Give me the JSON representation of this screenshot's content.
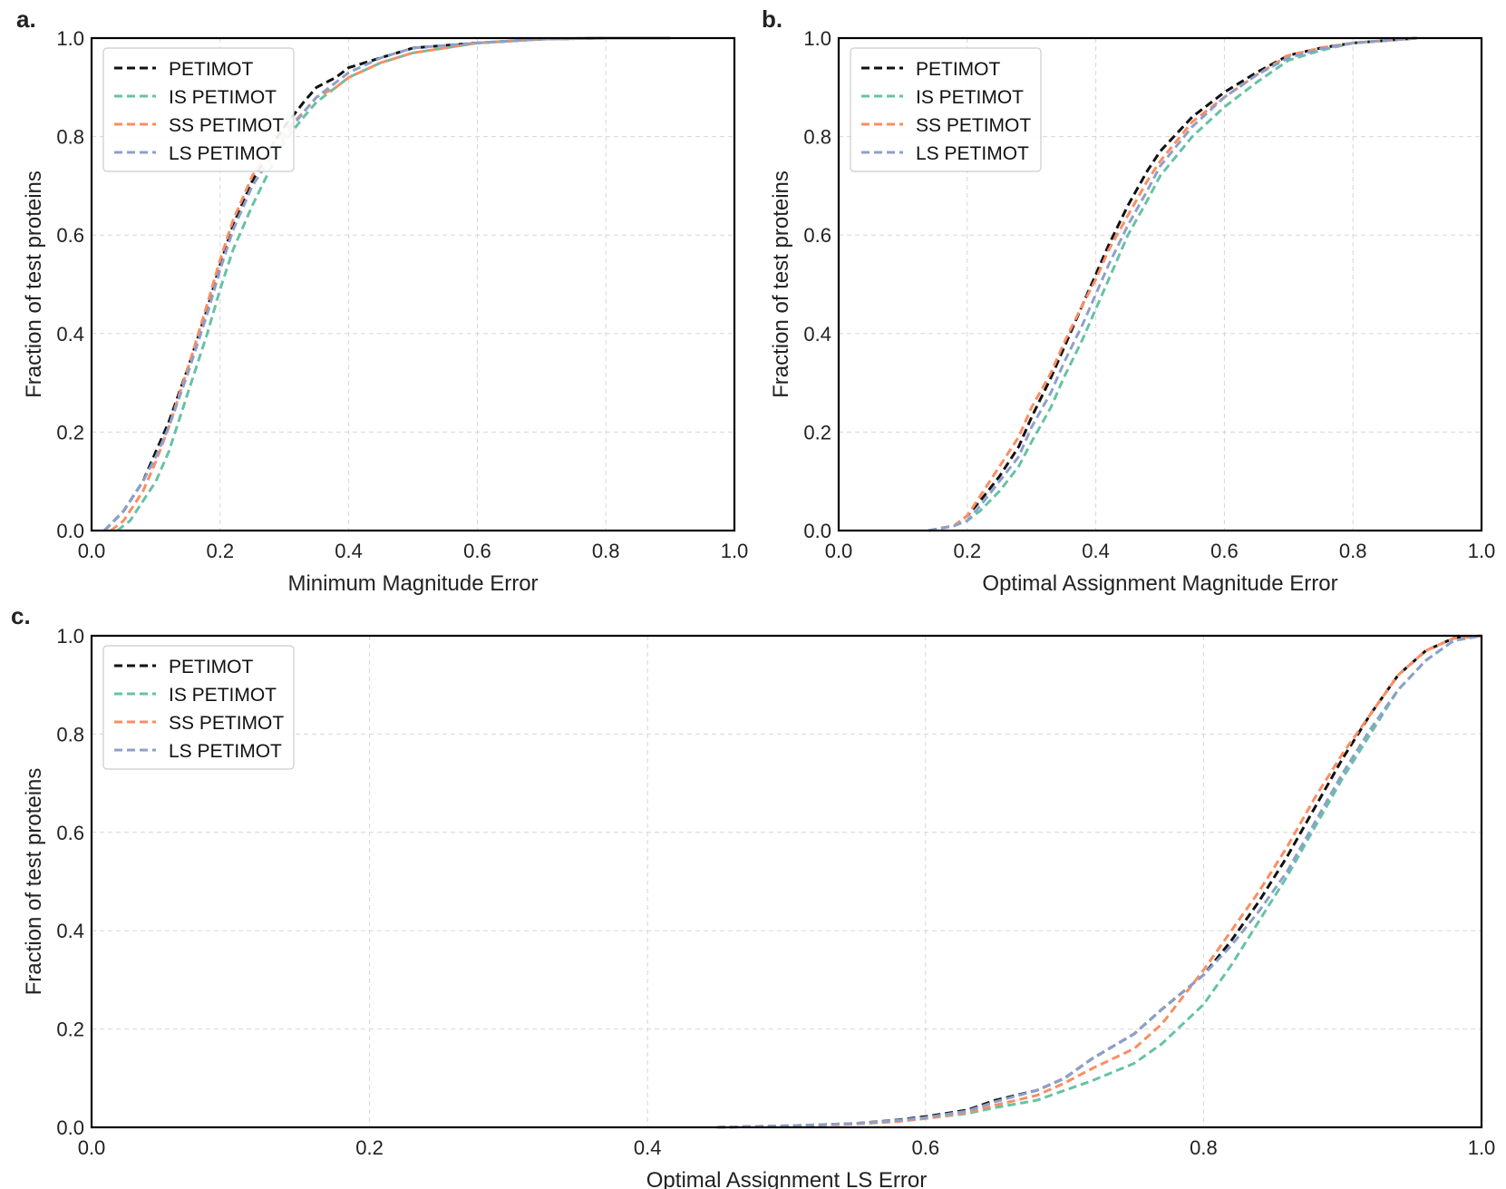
{
  "colors": {
    "PETIMOT": "#111111",
    "IS PETIMOT": "#66c2a5",
    "SS PETIMOT": "#fc8d62",
    "LS PETIMOT": "#8da0cb",
    "grid": "#d6d6d6",
    "axis": "#000000"
  },
  "chart_data": [
    {
      "panel_label": "a.",
      "type": "line",
      "xlabel": "Minimum Magnitude Error",
      "ylabel": "Fraction of test proteins",
      "xlim": [
        0.0,
        1.0
      ],
      "ylim": [
        0.0,
        1.0
      ],
      "xticks": [
        "0.0",
        "0.2",
        "0.4",
        "0.6",
        "0.8",
        "1.0"
      ],
      "yticks": [
        "0.0",
        "0.2",
        "0.4",
        "0.6",
        "0.8",
        "1.0"
      ],
      "grid": true,
      "legend_position": "top-left",
      "series": [
        {
          "name": "PETIMOT",
          "x": [
            0.02,
            0.05,
            0.08,
            0.1,
            0.12,
            0.15,
            0.18,
            0.2,
            0.22,
            0.25,
            0.28,
            0.3,
            0.33,
            0.35,
            0.38,
            0.4,
            0.45,
            0.5,
            0.55,
            0.6,
            0.7,
            0.8,
            0.9
          ],
          "y": [
            0.0,
            0.04,
            0.1,
            0.16,
            0.22,
            0.33,
            0.45,
            0.54,
            0.62,
            0.71,
            0.78,
            0.82,
            0.87,
            0.9,
            0.92,
            0.94,
            0.96,
            0.98,
            0.985,
            0.99,
            0.998,
            1.0,
            1.0
          ]
        },
        {
          "name": "IS PETIMOT",
          "x": [
            0.04,
            0.06,
            0.08,
            0.1,
            0.12,
            0.15,
            0.18,
            0.2,
            0.22,
            0.25,
            0.28,
            0.3,
            0.33,
            0.35,
            0.38,
            0.4,
            0.45,
            0.5,
            0.55,
            0.6,
            0.7,
            0.8,
            0.9
          ],
          "y": [
            0.0,
            0.02,
            0.06,
            0.1,
            0.16,
            0.28,
            0.4,
            0.49,
            0.57,
            0.66,
            0.74,
            0.79,
            0.84,
            0.87,
            0.9,
            0.92,
            0.95,
            0.97,
            0.98,
            0.99,
            0.998,
            1.0,
            1.0
          ]
        },
        {
          "name": "SS PETIMOT",
          "x": [
            0.03,
            0.05,
            0.08,
            0.1,
            0.12,
            0.15,
            0.18,
            0.2,
            0.22,
            0.25,
            0.28,
            0.3,
            0.33,
            0.35,
            0.38,
            0.4,
            0.45,
            0.5,
            0.55,
            0.6,
            0.7,
            0.8,
            0.9
          ],
          "y": [
            0.0,
            0.02,
            0.08,
            0.14,
            0.21,
            0.33,
            0.46,
            0.55,
            0.63,
            0.72,
            0.78,
            0.81,
            0.85,
            0.88,
            0.9,
            0.92,
            0.95,
            0.97,
            0.98,
            0.99,
            0.998,
            1.0,
            1.0
          ]
        },
        {
          "name": "LS PETIMOT",
          "x": [
            0.02,
            0.05,
            0.08,
            0.1,
            0.12,
            0.15,
            0.18,
            0.2,
            0.22,
            0.25,
            0.28,
            0.3,
            0.33,
            0.35,
            0.38,
            0.4,
            0.45,
            0.5,
            0.55,
            0.6,
            0.7,
            0.8,
            0.9
          ],
          "y": [
            0.0,
            0.04,
            0.1,
            0.15,
            0.21,
            0.32,
            0.44,
            0.53,
            0.61,
            0.7,
            0.76,
            0.8,
            0.85,
            0.88,
            0.91,
            0.93,
            0.96,
            0.98,
            0.985,
            0.99,
            0.998,
            1.0,
            1.0
          ]
        }
      ]
    },
    {
      "panel_label": "b.",
      "type": "line",
      "xlabel": "Optimal Assignment Magnitude Error",
      "ylabel": "Fraction of test proteins",
      "xlim": [
        0.0,
        1.0
      ],
      "ylim": [
        0.0,
        1.0
      ],
      "xticks": [
        "0.0",
        "0.2",
        "0.4",
        "0.6",
        "0.8",
        "1.0"
      ],
      "yticks": [
        "0.0",
        "0.2",
        "0.4",
        "0.6",
        "0.8",
        "1.0"
      ],
      "grid": true,
      "legend_position": "top-left",
      "series": [
        {
          "name": "PETIMOT",
          "x": [
            0.14,
            0.18,
            0.2,
            0.22,
            0.25,
            0.28,
            0.3,
            0.33,
            0.35,
            0.38,
            0.4,
            0.42,
            0.45,
            0.48,
            0.5,
            0.55,
            0.6,
            0.65,
            0.7,
            0.75,
            0.8,
            0.85,
            0.9
          ],
          "y": [
            0.0,
            0.01,
            0.03,
            0.06,
            0.11,
            0.17,
            0.23,
            0.31,
            0.37,
            0.46,
            0.52,
            0.58,
            0.66,
            0.73,
            0.77,
            0.84,
            0.89,
            0.93,
            0.965,
            0.98,
            0.99,
            0.995,
            1.0
          ]
        },
        {
          "name": "IS PETIMOT",
          "x": [
            0.14,
            0.18,
            0.2,
            0.22,
            0.25,
            0.28,
            0.3,
            0.33,
            0.35,
            0.38,
            0.4,
            0.42,
            0.45,
            0.48,
            0.5,
            0.55,
            0.6,
            0.65,
            0.7,
            0.75,
            0.8,
            0.85,
            0.9
          ],
          "y": [
            0.0,
            0.01,
            0.02,
            0.04,
            0.08,
            0.13,
            0.18,
            0.25,
            0.31,
            0.39,
            0.45,
            0.51,
            0.6,
            0.67,
            0.72,
            0.8,
            0.86,
            0.91,
            0.955,
            0.975,
            0.99,
            0.995,
            1.0
          ]
        },
        {
          "name": "SS PETIMOT",
          "x": [
            0.14,
            0.18,
            0.2,
            0.22,
            0.25,
            0.28,
            0.3,
            0.33,
            0.35,
            0.38,
            0.4,
            0.42,
            0.45,
            0.48,
            0.5,
            0.55,
            0.6,
            0.65,
            0.7,
            0.75,
            0.8,
            0.85,
            0.9
          ],
          "y": [
            0.0,
            0.01,
            0.03,
            0.07,
            0.13,
            0.19,
            0.25,
            0.32,
            0.38,
            0.46,
            0.51,
            0.57,
            0.64,
            0.71,
            0.75,
            0.83,
            0.88,
            0.925,
            0.965,
            0.98,
            0.99,
            0.995,
            1.0
          ]
        },
        {
          "name": "LS PETIMOT",
          "x": [
            0.14,
            0.18,
            0.2,
            0.22,
            0.25,
            0.28,
            0.3,
            0.33,
            0.35,
            0.38,
            0.4,
            0.42,
            0.45,
            0.48,
            0.5,
            0.55,
            0.6,
            0.65,
            0.7,
            0.75,
            0.8,
            0.85,
            0.9
          ],
          "y": [
            0.0,
            0.01,
            0.02,
            0.05,
            0.1,
            0.15,
            0.21,
            0.28,
            0.34,
            0.42,
            0.48,
            0.54,
            0.62,
            0.69,
            0.74,
            0.82,
            0.88,
            0.925,
            0.96,
            0.978,
            0.99,
            0.995,
            1.0
          ]
        }
      ]
    },
    {
      "panel_label": "c.",
      "type": "line",
      "xlabel": "Optimal Assignment LS Error",
      "ylabel": "Fraction of test proteins",
      "xlim": [
        0.0,
        1.0
      ],
      "ylim": [
        0.0,
        1.0
      ],
      "xticks": [
        "0.0",
        "0.2",
        "0.4",
        "0.6",
        "0.8",
        "1.0"
      ],
      "yticks": [
        "0.0",
        "0.2",
        "0.4",
        "0.6",
        "0.8",
        "1.0"
      ],
      "grid": true,
      "legend_position": "top-left",
      "series": [
        {
          "name": "PETIMOT",
          "x": [
            0.45,
            0.5,
            0.55,
            0.58,
            0.6,
            0.63,
            0.65,
            0.68,
            0.7,
            0.72,
            0.75,
            0.77,
            0.8,
            0.82,
            0.84,
            0.86,
            0.88,
            0.9,
            0.92,
            0.94,
            0.96,
            0.98,
            1.0
          ],
          "y": [
            0.0,
            0.003,
            0.008,
            0.015,
            0.022,
            0.035,
            0.055,
            0.075,
            0.1,
            0.14,
            0.19,
            0.24,
            0.31,
            0.38,
            0.46,
            0.55,
            0.65,
            0.75,
            0.84,
            0.92,
            0.97,
            0.995,
            1.0
          ]
        },
        {
          "name": "IS PETIMOT",
          "x": [
            0.45,
            0.5,
            0.55,
            0.58,
            0.6,
            0.63,
            0.65,
            0.68,
            0.7,
            0.72,
            0.75,
            0.77,
            0.8,
            0.82,
            0.84,
            0.86,
            0.88,
            0.9,
            0.92,
            0.94,
            0.96,
            0.98,
            1.0
          ],
          "y": [
            0.0,
            0.003,
            0.007,
            0.012,
            0.018,
            0.028,
            0.04,
            0.055,
            0.075,
            0.095,
            0.13,
            0.17,
            0.25,
            0.33,
            0.42,
            0.51,
            0.61,
            0.71,
            0.8,
            0.89,
            0.95,
            0.99,
            1.0
          ]
        },
        {
          "name": "SS PETIMOT",
          "x": [
            0.45,
            0.5,
            0.55,
            0.58,
            0.6,
            0.63,
            0.65,
            0.68,
            0.7,
            0.72,
            0.75,
            0.77,
            0.8,
            0.82,
            0.84,
            0.86,
            0.88,
            0.9,
            0.92,
            0.94,
            0.96,
            0.98,
            1.0
          ],
          "y": [
            0.0,
            0.003,
            0.007,
            0.012,
            0.018,
            0.03,
            0.045,
            0.065,
            0.09,
            0.12,
            0.16,
            0.21,
            0.32,
            0.4,
            0.48,
            0.57,
            0.67,
            0.76,
            0.84,
            0.92,
            0.97,
            0.995,
            1.0
          ]
        },
        {
          "name": "LS PETIMOT",
          "x": [
            0.45,
            0.5,
            0.55,
            0.58,
            0.6,
            0.63,
            0.65,
            0.68,
            0.7,
            0.72,
            0.75,
            0.77,
            0.8,
            0.82,
            0.84,
            0.86,
            0.88,
            0.9,
            0.92,
            0.94,
            0.96,
            0.98,
            1.0
          ],
          "y": [
            0.0,
            0.003,
            0.008,
            0.014,
            0.02,
            0.033,
            0.052,
            0.075,
            0.1,
            0.14,
            0.19,
            0.24,
            0.31,
            0.37,
            0.44,
            0.52,
            0.62,
            0.72,
            0.81,
            0.89,
            0.95,
            0.99,
            1.0
          ]
        }
      ]
    }
  ]
}
